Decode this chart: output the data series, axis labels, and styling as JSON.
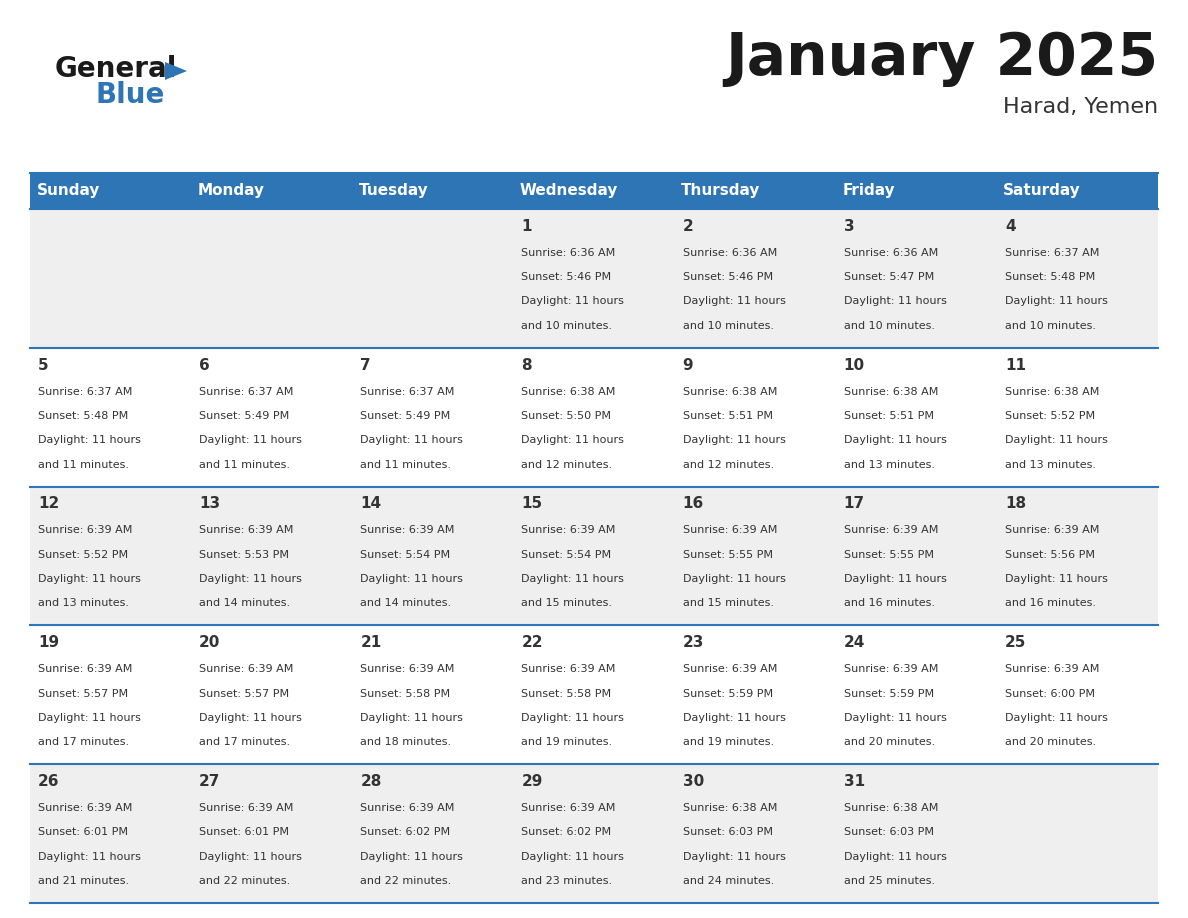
{
  "title": "January 2025",
  "subtitle": "Harad, Yemen",
  "header_color": "#2E75B6",
  "header_text_color": "#FFFFFF",
  "cell_bg_even": "#EFEFEF",
  "cell_bg_odd": "#FFFFFF",
  "border_color": "#2E75B6",
  "day_names": [
    "Sunday",
    "Monday",
    "Tuesday",
    "Wednesday",
    "Thursday",
    "Friday",
    "Saturday"
  ],
  "title_color": "#1a1a1a",
  "subtitle_color": "#333333",
  "day_number_color": "#333333",
  "cell_text_color": "#333333",
  "logo_general_color": "#1a1a1a",
  "logo_blue_color": "#2E75B6",
  "days": [
    {
      "date": 1,
      "col": 3,
      "row": 0,
      "sunrise": "6:36 AM",
      "sunset": "5:46 PM",
      "daylight_hours": 11,
      "daylight_minutes": 10
    },
    {
      "date": 2,
      "col": 4,
      "row": 0,
      "sunrise": "6:36 AM",
      "sunset": "5:46 PM",
      "daylight_hours": 11,
      "daylight_minutes": 10
    },
    {
      "date": 3,
      "col": 5,
      "row": 0,
      "sunrise": "6:36 AM",
      "sunset": "5:47 PM",
      "daylight_hours": 11,
      "daylight_minutes": 10
    },
    {
      "date": 4,
      "col": 6,
      "row": 0,
      "sunrise": "6:37 AM",
      "sunset": "5:48 PM",
      "daylight_hours": 11,
      "daylight_minutes": 10
    },
    {
      "date": 5,
      "col": 0,
      "row": 1,
      "sunrise": "6:37 AM",
      "sunset": "5:48 PM",
      "daylight_hours": 11,
      "daylight_minutes": 11
    },
    {
      "date": 6,
      "col": 1,
      "row": 1,
      "sunrise": "6:37 AM",
      "sunset": "5:49 PM",
      "daylight_hours": 11,
      "daylight_minutes": 11
    },
    {
      "date": 7,
      "col": 2,
      "row": 1,
      "sunrise": "6:37 AM",
      "sunset": "5:49 PM",
      "daylight_hours": 11,
      "daylight_minutes": 11
    },
    {
      "date": 8,
      "col": 3,
      "row": 1,
      "sunrise": "6:38 AM",
      "sunset": "5:50 PM",
      "daylight_hours": 11,
      "daylight_minutes": 12
    },
    {
      "date": 9,
      "col": 4,
      "row": 1,
      "sunrise": "6:38 AM",
      "sunset": "5:51 PM",
      "daylight_hours": 11,
      "daylight_minutes": 12
    },
    {
      "date": 10,
      "col": 5,
      "row": 1,
      "sunrise": "6:38 AM",
      "sunset": "5:51 PM",
      "daylight_hours": 11,
      "daylight_minutes": 13
    },
    {
      "date": 11,
      "col": 6,
      "row": 1,
      "sunrise": "6:38 AM",
      "sunset": "5:52 PM",
      "daylight_hours": 11,
      "daylight_minutes": 13
    },
    {
      "date": 12,
      "col": 0,
      "row": 2,
      "sunrise": "6:39 AM",
      "sunset": "5:52 PM",
      "daylight_hours": 11,
      "daylight_minutes": 13
    },
    {
      "date": 13,
      "col": 1,
      "row": 2,
      "sunrise": "6:39 AM",
      "sunset": "5:53 PM",
      "daylight_hours": 11,
      "daylight_minutes": 14
    },
    {
      "date": 14,
      "col": 2,
      "row": 2,
      "sunrise": "6:39 AM",
      "sunset": "5:54 PM",
      "daylight_hours": 11,
      "daylight_minutes": 14
    },
    {
      "date": 15,
      "col": 3,
      "row": 2,
      "sunrise": "6:39 AM",
      "sunset": "5:54 PM",
      "daylight_hours": 11,
      "daylight_minutes": 15
    },
    {
      "date": 16,
      "col": 4,
      "row": 2,
      "sunrise": "6:39 AM",
      "sunset": "5:55 PM",
      "daylight_hours": 11,
      "daylight_minutes": 15
    },
    {
      "date": 17,
      "col": 5,
      "row": 2,
      "sunrise": "6:39 AM",
      "sunset": "5:55 PM",
      "daylight_hours": 11,
      "daylight_minutes": 16
    },
    {
      "date": 18,
      "col": 6,
      "row": 2,
      "sunrise": "6:39 AM",
      "sunset": "5:56 PM",
      "daylight_hours": 11,
      "daylight_minutes": 16
    },
    {
      "date": 19,
      "col": 0,
      "row": 3,
      "sunrise": "6:39 AM",
      "sunset": "5:57 PM",
      "daylight_hours": 11,
      "daylight_minutes": 17
    },
    {
      "date": 20,
      "col": 1,
      "row": 3,
      "sunrise": "6:39 AM",
      "sunset": "5:57 PM",
      "daylight_hours": 11,
      "daylight_minutes": 17
    },
    {
      "date": 21,
      "col": 2,
      "row": 3,
      "sunrise": "6:39 AM",
      "sunset": "5:58 PM",
      "daylight_hours": 11,
      "daylight_minutes": 18
    },
    {
      "date": 22,
      "col": 3,
      "row": 3,
      "sunrise": "6:39 AM",
      "sunset": "5:58 PM",
      "daylight_hours": 11,
      "daylight_minutes": 19
    },
    {
      "date": 23,
      "col": 4,
      "row": 3,
      "sunrise": "6:39 AM",
      "sunset": "5:59 PM",
      "daylight_hours": 11,
      "daylight_minutes": 19
    },
    {
      "date": 24,
      "col": 5,
      "row": 3,
      "sunrise": "6:39 AM",
      "sunset": "5:59 PM",
      "daylight_hours": 11,
      "daylight_minutes": 20
    },
    {
      "date": 25,
      "col": 6,
      "row": 3,
      "sunrise": "6:39 AM",
      "sunset": "6:00 PM",
      "daylight_hours": 11,
      "daylight_minutes": 20
    },
    {
      "date": 26,
      "col": 0,
      "row": 4,
      "sunrise": "6:39 AM",
      "sunset": "6:01 PM",
      "daylight_hours": 11,
      "daylight_minutes": 21
    },
    {
      "date": 27,
      "col": 1,
      "row": 4,
      "sunrise": "6:39 AM",
      "sunset": "6:01 PM",
      "daylight_hours": 11,
      "daylight_minutes": 22
    },
    {
      "date": 28,
      "col": 2,
      "row": 4,
      "sunrise": "6:39 AM",
      "sunset": "6:02 PM",
      "daylight_hours": 11,
      "daylight_minutes": 22
    },
    {
      "date": 29,
      "col": 3,
      "row": 4,
      "sunrise": "6:39 AM",
      "sunset": "6:02 PM",
      "daylight_hours": 11,
      "daylight_minutes": 23
    },
    {
      "date": 30,
      "col": 4,
      "row": 4,
      "sunrise": "6:38 AM",
      "sunset": "6:03 PM",
      "daylight_hours": 11,
      "daylight_minutes": 24
    },
    {
      "date": 31,
      "col": 5,
      "row": 4,
      "sunrise": "6:38 AM",
      "sunset": "6:03 PM",
      "daylight_hours": 11,
      "daylight_minutes": 25
    }
  ]
}
